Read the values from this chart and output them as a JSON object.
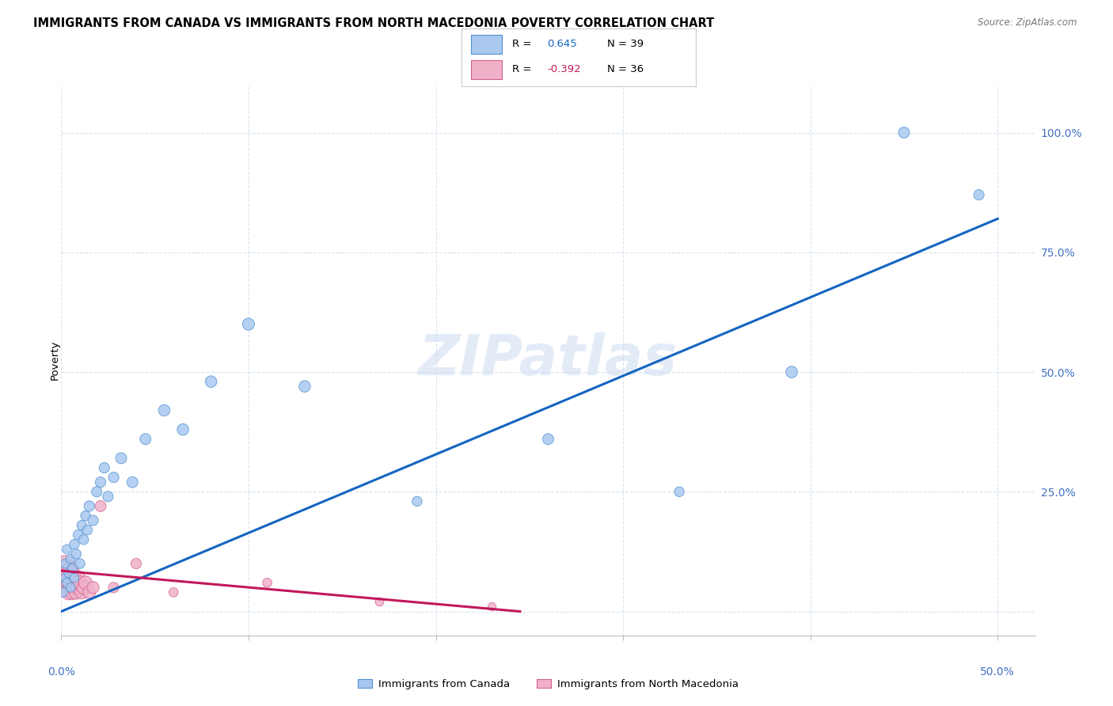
{
  "title": "IMMIGRANTS FROM CANADA VS IMMIGRANTS FROM NORTH MACEDONIA POVERTY CORRELATION CHART",
  "source": "Source: ZipAtlas.com",
  "ylabel": "Poverty",
  "xlim": [
    0.0,
    0.52
  ],
  "ylim": [
    -0.05,
    1.1
  ],
  "ytick_positions": [
    0.0,
    0.25,
    0.5,
    0.75,
    1.0
  ],
  "ytick_labels": [
    "",
    "25.0%",
    "50.0%",
    "75.0%",
    "100.0%"
  ],
  "xtick_positions": [
    0.0,
    0.1,
    0.2,
    0.3,
    0.4,
    0.5
  ],
  "r_canada": 0.645,
  "n_canada": 39,
  "r_macedonia": -0.392,
  "n_macedonia": 36,
  "canada_fill": "#a8c8f0",
  "canada_edge": "#5090d0",
  "macedonia_fill": "#f0b0c8",
  "macedonia_edge": "#d06090",
  "line_canada": "#1565c0",
  "line_macedonia": "#c2185b",
  "watermark_color": "#c8d8f0",
  "grid_color": "#d8e4f0",
  "background": "#ffffff",
  "canada_x": [
    0.001,
    0.002,
    0.002,
    0.003,
    0.003,
    0.004,
    0.005,
    0.005,
    0.006,
    0.007,
    0.007,
    0.008,
    0.009,
    0.01,
    0.011,
    0.012,
    0.013,
    0.014,
    0.015,
    0.017,
    0.019,
    0.021,
    0.023,
    0.025,
    0.028,
    0.032,
    0.038,
    0.045,
    0.055,
    0.065,
    0.08,
    0.1,
    0.13,
    0.19,
    0.26,
    0.33,
    0.39,
    0.45,
    0.49
  ],
  "canada_y": [
    0.04,
    0.07,
    0.1,
    0.06,
    0.13,
    0.08,
    0.05,
    0.11,
    0.09,
    0.07,
    0.14,
    0.12,
    0.16,
    0.1,
    0.18,
    0.15,
    0.2,
    0.17,
    0.22,
    0.19,
    0.25,
    0.27,
    0.3,
    0.24,
    0.28,
    0.32,
    0.27,
    0.36,
    0.42,
    0.38,
    0.48,
    0.6,
    0.47,
    0.23,
    0.36,
    0.25,
    0.5,
    1.0,
    0.87
  ],
  "canada_s": [
    70,
    70,
    70,
    70,
    70,
    70,
    70,
    70,
    70,
    70,
    80,
    80,
    80,
    80,
    80,
    80,
    80,
    80,
    90,
    90,
    90,
    90,
    90,
    90,
    90,
    100,
    100,
    100,
    110,
    110,
    110,
    120,
    110,
    80,
    100,
    80,
    110,
    100,
    90
  ],
  "mac_x": [
    0.001,
    0.001,
    0.002,
    0.002,
    0.002,
    0.003,
    0.003,
    0.003,
    0.004,
    0.004,
    0.004,
    0.005,
    0.005,
    0.005,
    0.006,
    0.006,
    0.006,
    0.007,
    0.007,
    0.008,
    0.008,
    0.009,
    0.009,
    0.01,
    0.011,
    0.012,
    0.013,
    0.015,
    0.017,
    0.021,
    0.028,
    0.04,
    0.06,
    0.11,
    0.17,
    0.23
  ],
  "mac_y": [
    0.07,
    0.05,
    0.08,
    0.06,
    0.1,
    0.07,
    0.09,
    0.05,
    0.08,
    0.06,
    0.04,
    0.07,
    0.05,
    0.09,
    0.06,
    0.08,
    0.04,
    0.07,
    0.05,
    0.06,
    0.04,
    0.07,
    0.05,
    0.06,
    0.04,
    0.05,
    0.06,
    0.04,
    0.05,
    0.22,
    0.05,
    0.1,
    0.04,
    0.06,
    0.02,
    0.01
  ],
  "mac_s": [
    220,
    200,
    220,
    200,
    220,
    200,
    210,
    200,
    200,
    190,
    190,
    190,
    180,
    180,
    180,
    180,
    170,
    170,
    170,
    170,
    160,
    170,
    160,
    160,
    150,
    150,
    150,
    130,
    120,
    100,
    90,
    90,
    70,
    70,
    60,
    55
  ],
  "line_canada_x0": 0.0,
  "line_canada_y0": 0.0,
  "line_canada_x1": 0.5,
  "line_canada_y1": 0.82,
  "line_mac_x0": 0.0,
  "line_mac_y0": 0.085,
  "line_mac_x1": 0.245,
  "line_mac_y1": 0.0
}
